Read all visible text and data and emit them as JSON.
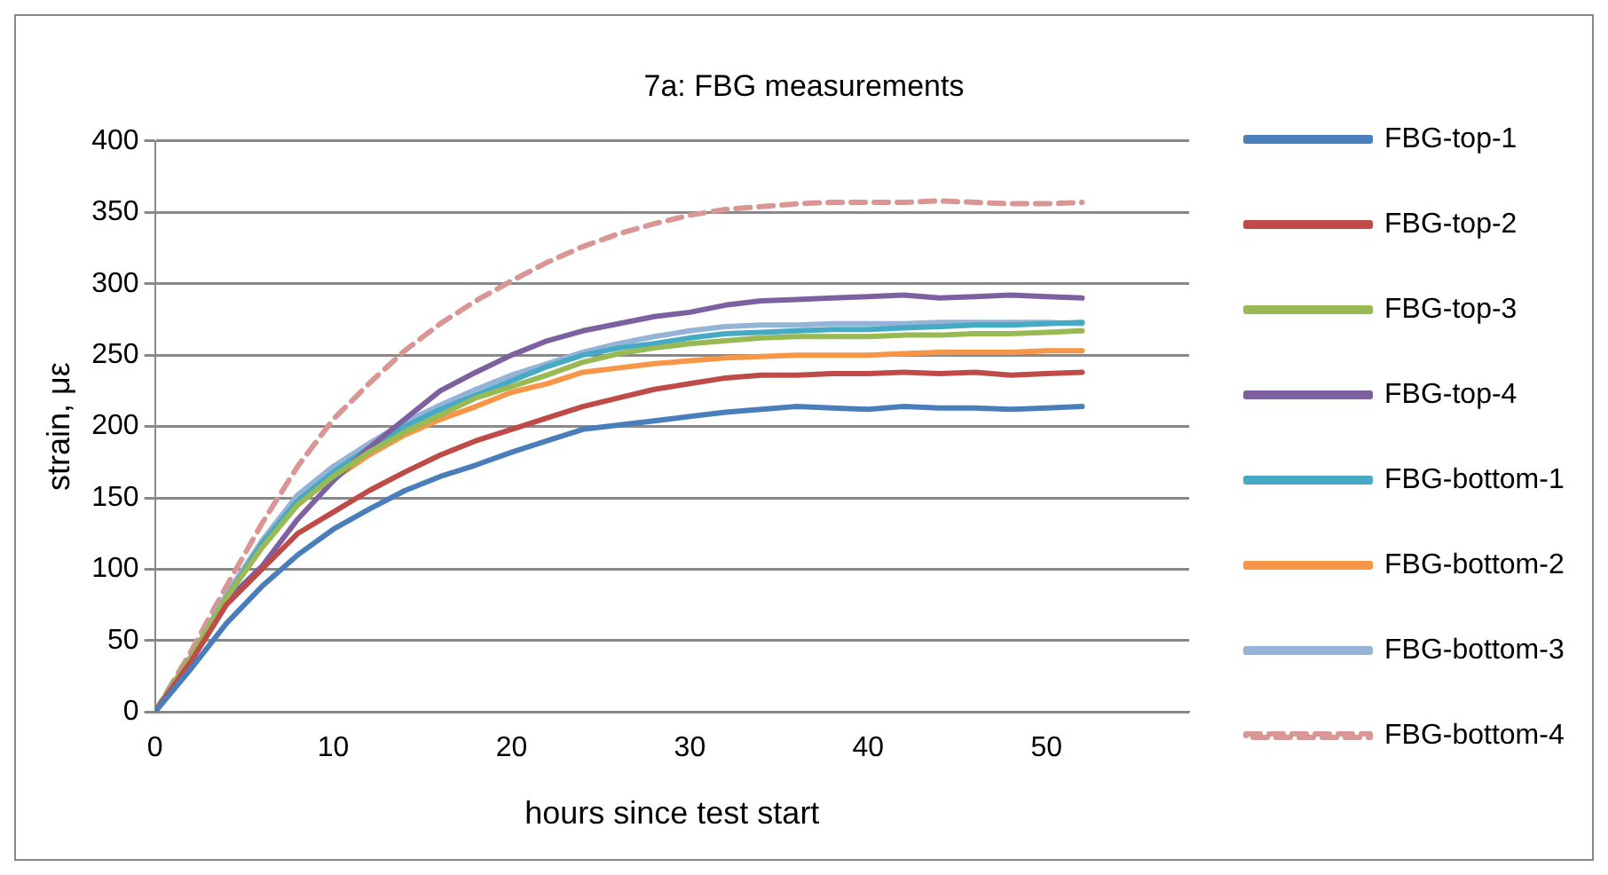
{
  "chart_data": {
    "type": "line",
    "title": "7a: FBG measurements",
    "xlabel": "hours since test start",
    "ylabel": "strain, με",
    "x": [
      0,
      2,
      4,
      6,
      8,
      10,
      12,
      14,
      16,
      18,
      20,
      22,
      24,
      26,
      28,
      30,
      32,
      34,
      36,
      38,
      40,
      42,
      44,
      46,
      48,
      50,
      52
    ],
    "xlim": [
      0,
      58
    ],
    "xticks": [
      0,
      10,
      20,
      30,
      40,
      50
    ],
    "ylim": [
      0,
      400
    ],
    "yticks": [
      0,
      50,
      100,
      150,
      200,
      250,
      300,
      350,
      400
    ],
    "grid": "y",
    "legend": "right",
    "marker": "none",
    "series": [
      {
        "name": "FBG-top-1",
        "color": "#4a7ebb",
        "values": [
          0,
          30,
          62,
          88,
          110,
          128,
          142,
          155,
          165,
          173,
          182,
          190,
          198,
          201,
          204,
          207,
          210,
          212,
          214,
          213,
          212,
          214,
          213,
          213,
          212,
          213,
          214
        ]
      },
      {
        "name": "FBG-top-2",
        "color": "#be4b48",
        "values": [
          0,
          35,
          75,
          100,
          125,
          140,
          155,
          168,
          180,
          190,
          198,
          206,
          214,
          220,
          226,
          230,
          234,
          236,
          236,
          237,
          237,
          238,
          237,
          238,
          236,
          237,
          238
        ]
      },
      {
        "name": "FBG-top-3",
        "color": "#98b954",
        "values": [
          0,
          38,
          80,
          115,
          145,
          165,
          182,
          196,
          208,
          220,
          228,
          236,
          245,
          251,
          255,
          258,
          260,
          262,
          263,
          263,
          263,
          264,
          264,
          265,
          265,
          266,
          267
        ]
      },
      {
        "name": "FBG-top-4",
        "color": "#7d60a0",
        "values": [
          0,
          38,
          78,
          102,
          135,
          162,
          185,
          205,
          225,
          238,
          250,
          260,
          267,
          272,
          277,
          280,
          285,
          288,
          289,
          290,
          291,
          292,
          290,
          291,
          292,
          291,
          290
        ]
      },
      {
        "name": "FBG-bottom-1",
        "color": "#46aac5",
        "values": [
          0,
          38,
          80,
          118,
          148,
          168,
          185,
          200,
          212,
          222,
          232,
          242,
          250,
          255,
          258,
          262,
          265,
          266,
          267,
          268,
          268,
          269,
          270,
          271,
          271,
          272,
          273
        ]
      },
      {
        "name": "FBG-bottom-2",
        "color": "#f79646",
        "values": [
          0,
          38,
          80,
          118,
          148,
          163,
          180,
          194,
          205,
          214,
          224,
          230,
          238,
          241,
          244,
          246,
          248,
          249,
          250,
          250,
          250,
          251,
          252,
          252,
          252,
          253,
          253
        ]
      },
      {
        "name": "FBG-bottom-3",
        "color": "#95b3d7",
        "values": [
          0,
          38,
          82,
          120,
          152,
          172,
          188,
          203,
          215,
          226,
          236,
          244,
          252,
          258,
          263,
          267,
          270,
          271,
          271,
          272,
          272,
          272,
          273,
          273,
          273,
          273,
          272
        ]
      },
      {
        "name": "FBG-bottom-4",
        "color": "#d99694",
        "line_style": "dashed",
        "values": [
          0,
          42,
          88,
          132,
          172,
          205,
          230,
          253,
          272,
          288,
          302,
          315,
          326,
          335,
          342,
          348,
          352,
          354,
          356,
          357,
          357,
          357,
          358,
          357,
          356,
          356,
          357
        ]
      }
    ]
  }
}
